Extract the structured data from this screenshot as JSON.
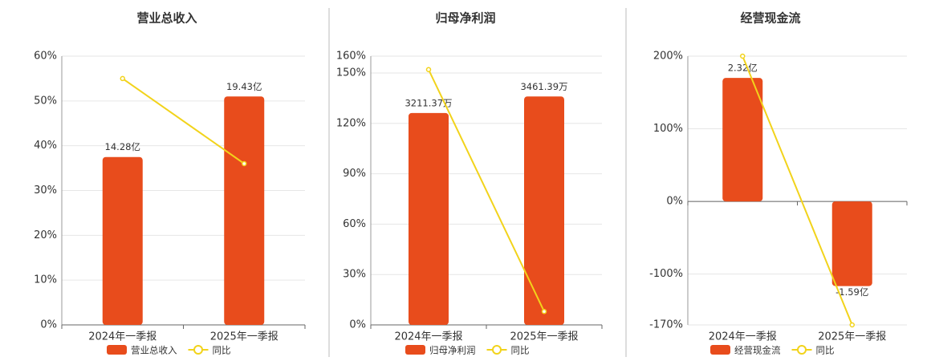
{
  "chart_data": [
    {
      "type": "combo",
      "title": "营业总收入",
      "categories": [
        "2024年一季报",
        "2025年一季报"
      ],
      "series": [
        {
          "name": "营业总收入",
          "type": "bar",
          "color": "#e84c1c",
          "values": [
            14.28,
            19.43
          ],
          "value_labels": [
            "14.28亿",
            "19.43亿"
          ]
        },
        {
          "name": "同比",
          "type": "line",
          "color": "#f2d31b",
          "values": [
            55,
            36
          ]
        }
      ],
      "ylim": [
        0,
        60
      ],
      "yticks": [
        {
          "value": 0,
          "label": "0%"
        },
        {
          "value": 10,
          "label": "10%"
        },
        {
          "value": 20,
          "label": "20%"
        },
        {
          "value": 30,
          "label": "30%"
        },
        {
          "value": 40,
          "label": "40%"
        },
        {
          "value": 50,
          "label": "50%"
        },
        {
          "value": 60,
          "label": "60%"
        }
      ],
      "grid": true
    },
    {
      "type": "combo",
      "title": "归母净利润",
      "categories": [
        "2024年一季报",
        "2025年一季报"
      ],
      "series": [
        {
          "name": "归母净利润",
          "type": "bar",
          "color": "#e84c1c",
          "values": [
            3211.37,
            3461.39
          ],
          "value_labels": [
            "3211.37万",
            "3461.39万"
          ]
        },
        {
          "name": "同比",
          "type": "line",
          "color": "#f2d31b",
          "values": [
            152,
            8
          ]
        }
      ],
      "ylim": [
        0,
        160
      ],
      "yticks": [
        {
          "value": 0,
          "label": "0%"
        },
        {
          "value": 30,
          "label": "30%"
        },
        {
          "value": 60,
          "label": "60%"
        },
        {
          "value": 90,
          "label": "90%"
        },
        {
          "value": 120,
          "label": "120%"
        },
        {
          "value": 150,
          "label": "150%"
        },
        {
          "value": 160,
          "label": "160%"
        }
      ],
      "grid": true
    },
    {
      "type": "combo",
      "title": "经营现金流",
      "categories": [
        "2024年一季报",
        "2025年一季报"
      ],
      "series": [
        {
          "name": "经营现金流",
          "type": "bar",
          "color": "#e84c1c",
          "values": [
            2.32,
            -1.59
          ],
          "value_labels": [
            "2.32亿",
            "-1.59亿"
          ]
        },
        {
          "name": "同比",
          "type": "line",
          "color": "#f2d31b",
          "values": [
            200,
            -170
          ]
        }
      ],
      "ylim": [
        -170,
        200
      ],
      "yticks": [
        {
          "value": -170,
          "label": "-170%"
        },
        {
          "value": -100,
          "label": "-100%"
        },
        {
          "value": 0,
          "label": "0%"
        },
        {
          "value": 100,
          "label": "100%"
        },
        {
          "value": 200,
          "label": "200%"
        }
      ],
      "grid": true
    }
  ]
}
